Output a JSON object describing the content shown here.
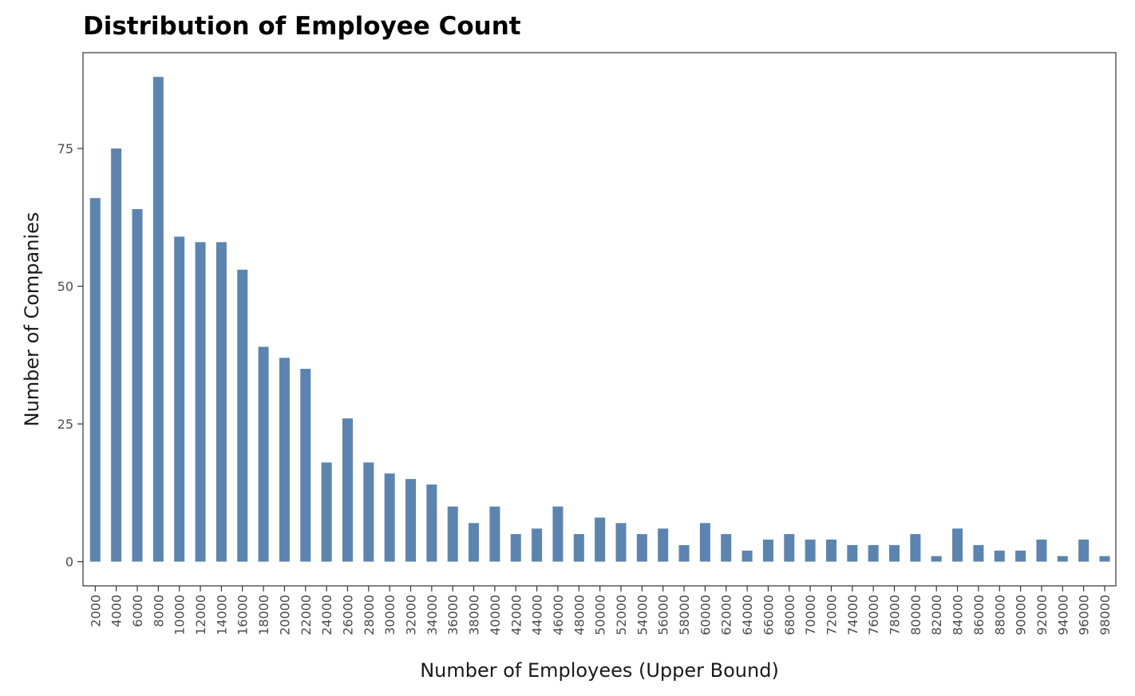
{
  "chart_data": {
    "type": "bar",
    "title": "Distribution of Employee Count",
    "xlabel": "Number of Employees (Upper Bound)",
    "ylabel": "Number of Companies",
    "categories": [
      "2000",
      "4000",
      "6000",
      "8000",
      "10000",
      "12000",
      "14000",
      "16000",
      "18000",
      "20000",
      "22000",
      "24000",
      "26000",
      "28000",
      "30000",
      "32000",
      "34000",
      "36000",
      "38000",
      "40000",
      "42000",
      "44000",
      "46000",
      "48000",
      "50000",
      "52000",
      "54000",
      "56000",
      "58000",
      "60000",
      "62000",
      "64000",
      "66000",
      "68000",
      "70000",
      "72000",
      "74000",
      "76000",
      "78000",
      "80000",
      "82000",
      "84000",
      "86000",
      "88000",
      "90000",
      "92000",
      "94000",
      "96000",
      "98000"
    ],
    "values": [
      66,
      75,
      64,
      88,
      59,
      58,
      58,
      53,
      39,
      37,
      35,
      18,
      26,
      18,
      16,
      15,
      14,
      10,
      7,
      10,
      5,
      6,
      10,
      5,
      8,
      7,
      5,
      6,
      3,
      7,
      5,
      2,
      4,
      5,
      4,
      4,
      3,
      3,
      3,
      5,
      1,
      6,
      3,
      2,
      2,
      4,
      1,
      4,
      1
    ],
    "yticks": [
      0,
      25,
      50,
      75
    ],
    "ylim": [
      -4.4,
      92.4
    ],
    "bar_color": "#5b84b1",
    "grid": false
  }
}
